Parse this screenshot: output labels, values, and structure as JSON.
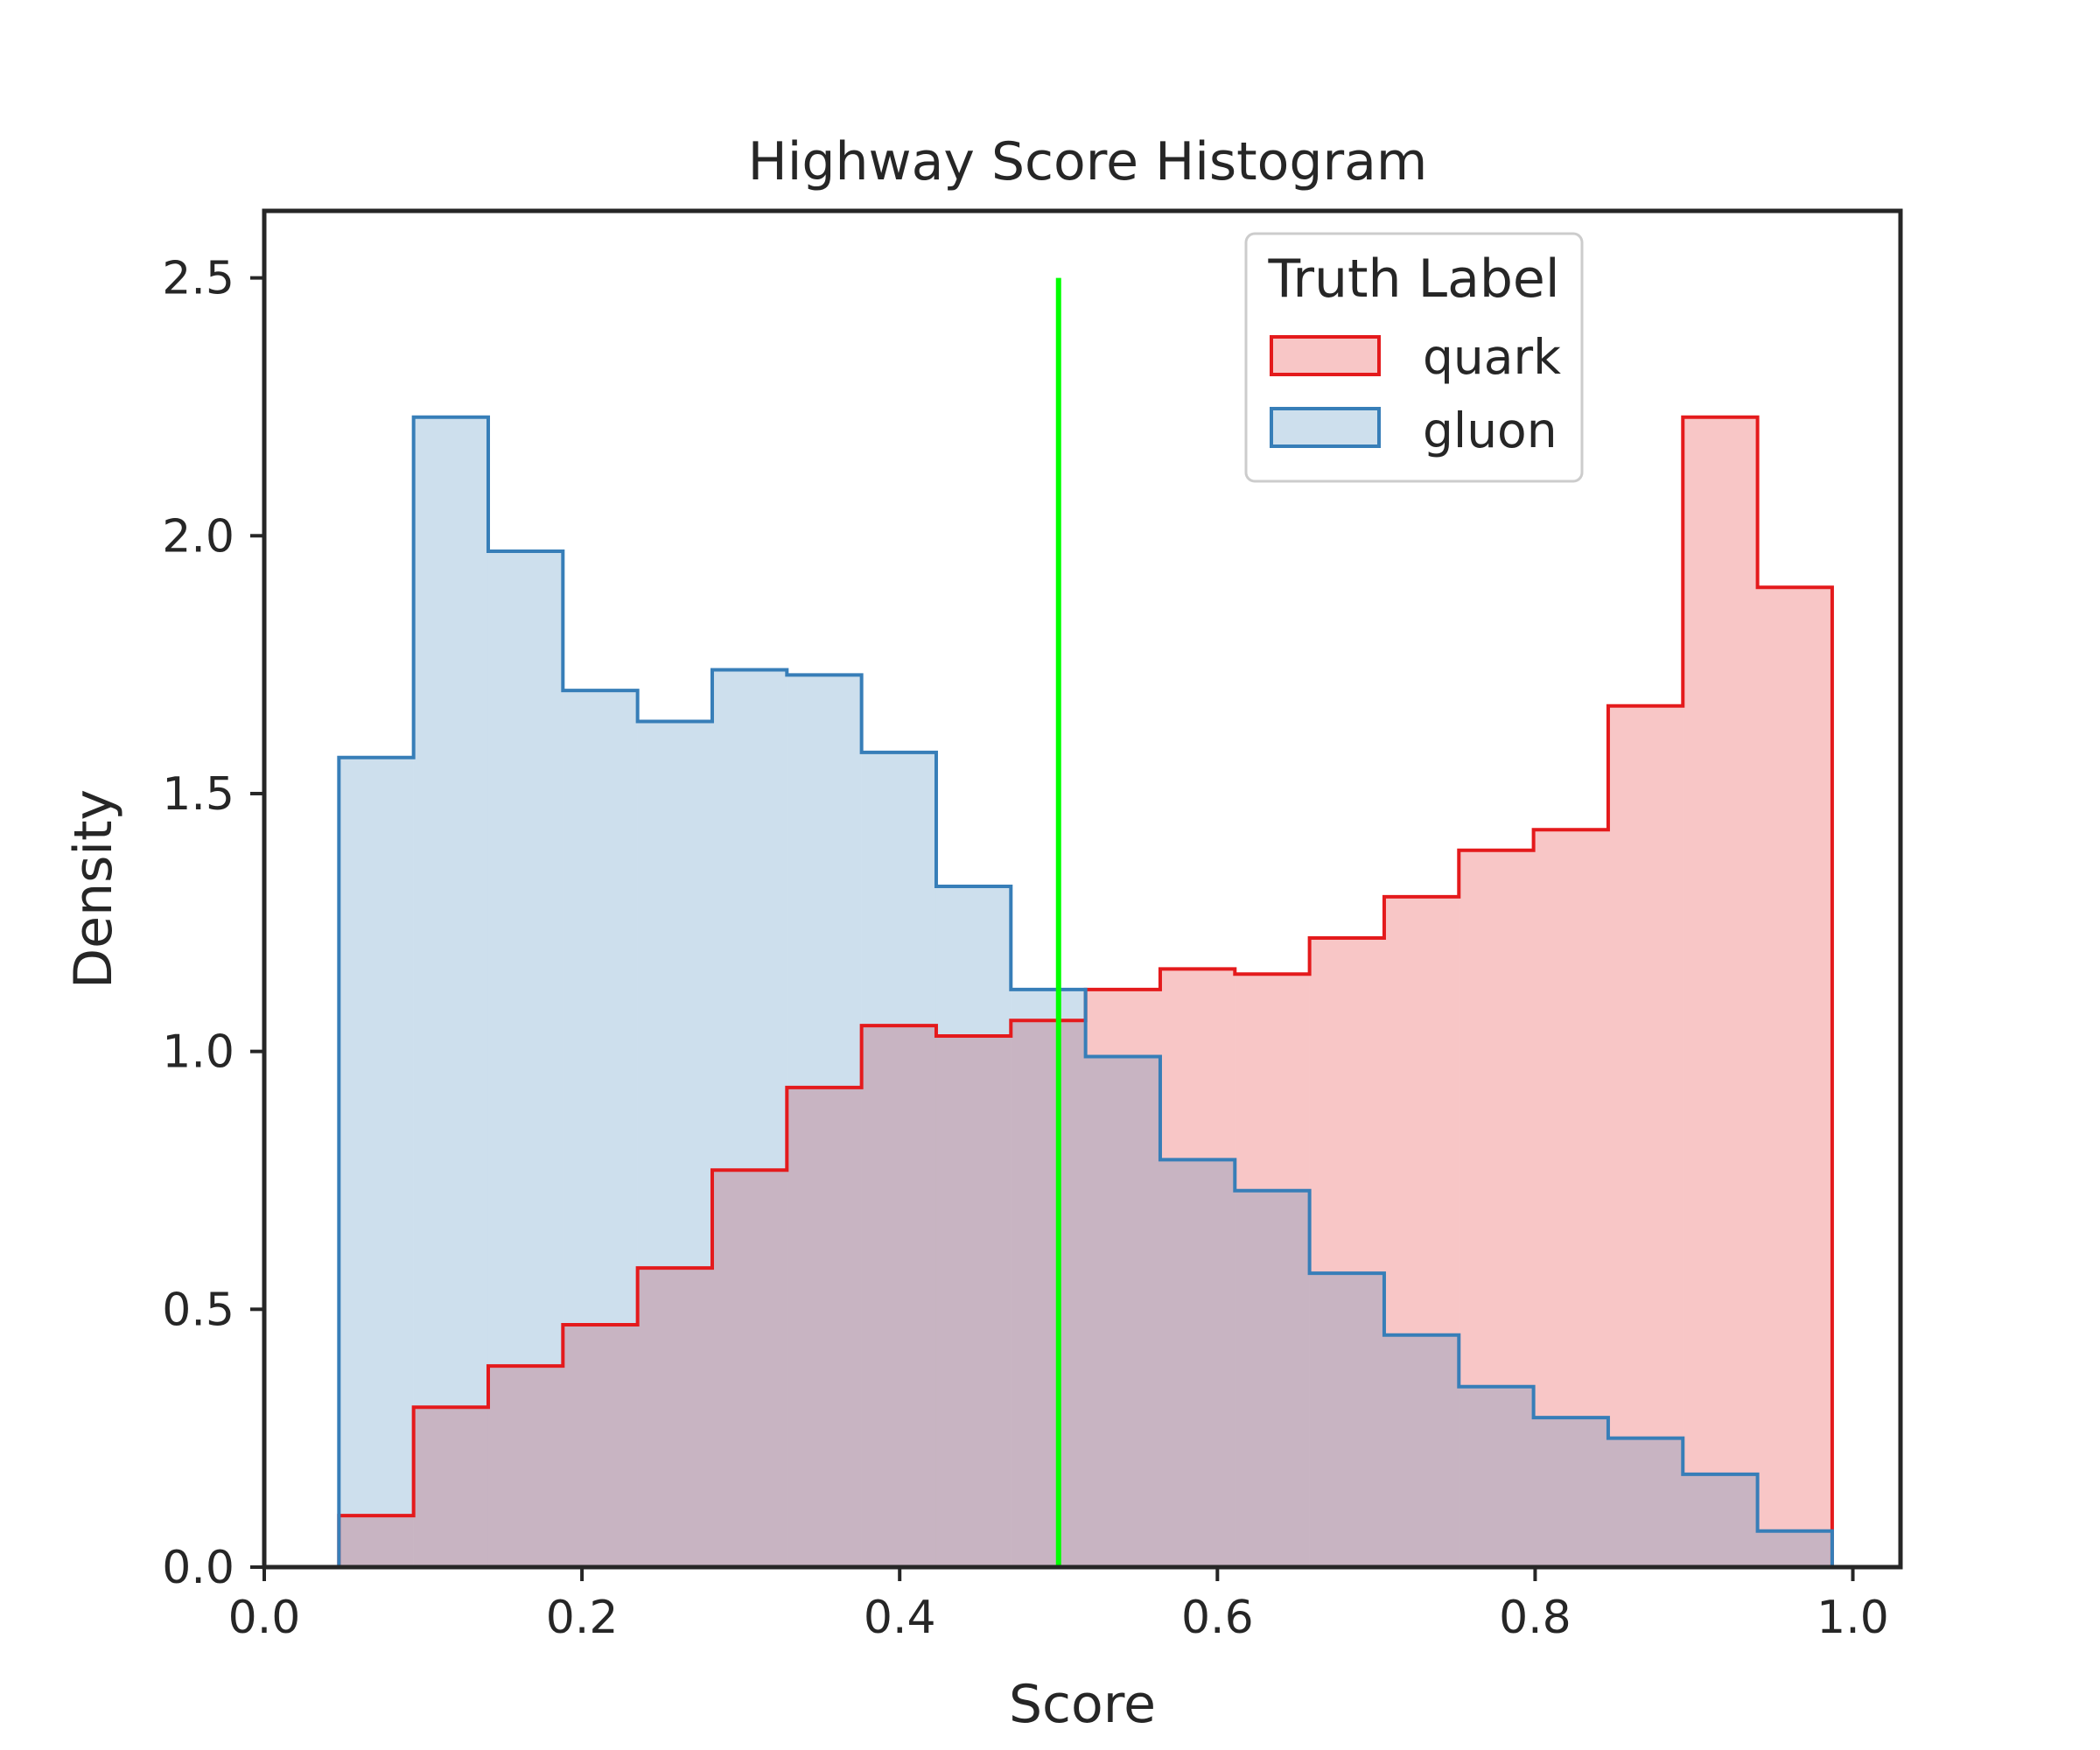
{
  "chart_data": {
    "type": "histogram",
    "title": "Highway Score Histogram",
    "xlabel": "Score",
    "ylabel": "Density",
    "xlim": [
      0.0,
      1.03
    ],
    "ylim": [
      0.0,
      2.63
    ],
    "xticks": [
      0.0,
      0.2,
      0.4,
      0.6,
      0.8,
      1.0
    ],
    "xtick_labels": [
      "0.0",
      "0.2",
      "0.4",
      "0.6",
      "0.8",
      "1.0"
    ],
    "yticks": [
      0.0,
      0.5,
      1.0,
      1.5,
      2.0,
      2.5
    ],
    "ytick_labels": [
      "0.0",
      "0.5",
      "1.0",
      "1.5",
      "2.0",
      "2.5"
    ],
    "bin_edges": [
      0.047,
      0.094,
      0.141,
      0.188,
      0.235,
      0.282,
      0.329,
      0.376,
      0.423,
      0.47,
      0.517,
      0.564,
      0.611,
      0.658,
      0.705,
      0.752,
      0.799,
      0.846,
      0.893,
      0.94,
      0.987
    ],
    "series": [
      {
        "name": "quark",
        "color": "#e41a1c",
        "fill": "rgba(228,26,28,0.25)",
        "values": [
          0.1,
          0.31,
          0.39,
          0.47,
          0.58,
          0.77,
          0.93,
          1.05,
          1.03,
          1.06,
          1.12,
          1.16,
          1.15,
          1.22,
          1.3,
          1.39,
          1.43,
          1.67,
          2.23,
          1.9
        ]
      },
      {
        "name": "gluon",
        "color": "#377eb8",
        "fill": "rgba(55,126,184,0.25)",
        "values": [
          1.57,
          2.23,
          1.97,
          1.7,
          1.64,
          1.74,
          1.73,
          1.58,
          1.32,
          1.12,
          0.99,
          0.79,
          0.73,
          0.57,
          0.45,
          0.35,
          0.29,
          0.25,
          0.18,
          0.07
        ]
      }
    ],
    "threshold_line": {
      "x": 0.5,
      "y_range": [
        0.0,
        2.5
      ],
      "color": "#00ff00"
    },
    "legend": {
      "title": "Truth Label",
      "position": "top-right",
      "entries": [
        "quark",
        "gluon"
      ]
    }
  }
}
